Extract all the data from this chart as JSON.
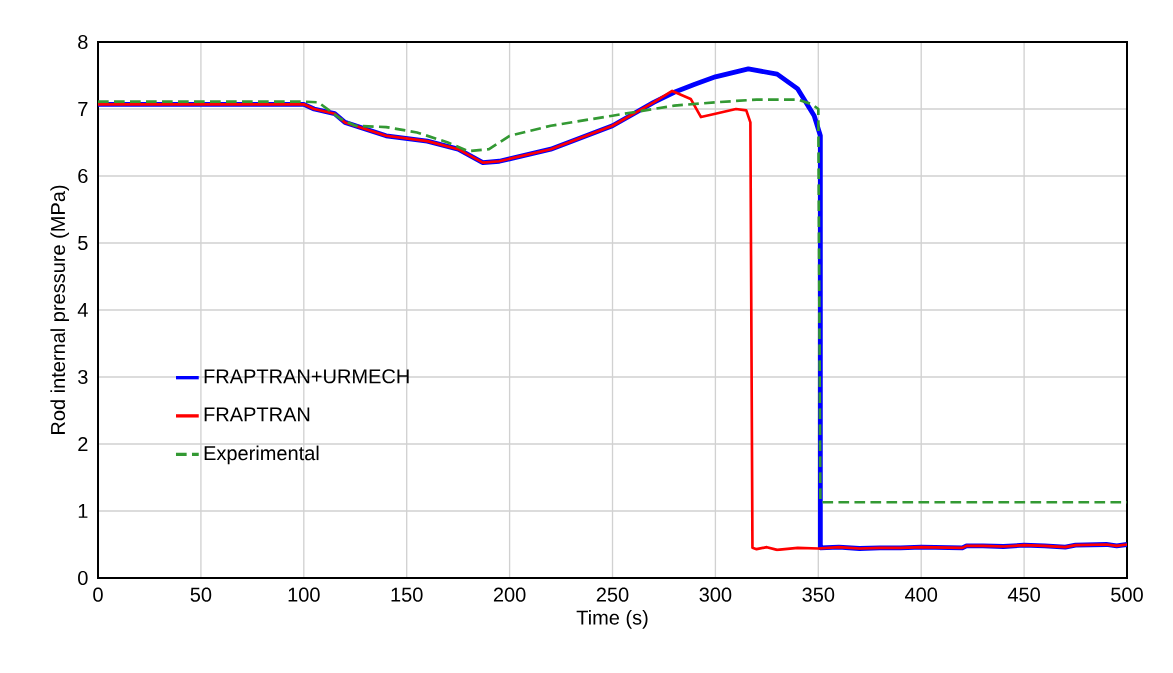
{
  "chart_data": {
    "type": "line",
    "xlabel": "Time (s)",
    "ylabel": "Rod internal pressure (MPa)",
    "xlim": [
      0,
      500
    ],
    "ylim": [
      0,
      8
    ],
    "xticks": [
      0,
      50,
      100,
      150,
      200,
      250,
      300,
      350,
      400,
      450,
      500
    ],
    "yticks": [
      0,
      1,
      2,
      3,
      4,
      5,
      6,
      7,
      8
    ],
    "grid": true,
    "legend": "left",
    "series": [
      {
        "name": "FRAPTRAN+URMECH",
        "color": "#0000ff",
        "line_style": "solid",
        "x": [
          0,
          100,
          105,
          115,
          120,
          140,
          160,
          175,
          187,
          195,
          220,
          250,
          270,
          280,
          290,
          300,
          316,
          330,
          340,
          348,
          351,
          351,
          360,
          370,
          380,
          390,
          400,
          420,
          422,
          430,
          440,
          450,
          460,
          470,
          475,
          490,
          495,
          500
        ],
        "values": [
          7.07,
          7.07,
          7.0,
          6.93,
          6.8,
          6.6,
          6.52,
          6.4,
          6.2,
          6.22,
          6.4,
          6.75,
          7.1,
          7.25,
          7.37,
          7.48,
          7.6,
          7.52,
          7.3,
          6.9,
          6.6,
          0.45,
          0.46,
          0.44,
          0.45,
          0.45,
          0.46,
          0.45,
          0.48,
          0.48,
          0.47,
          0.49,
          0.48,
          0.46,
          0.49,
          0.5,
          0.48,
          0.5
        ]
      },
      {
        "name": "FRAPTRAN",
        "color": "#ff0000",
        "line_style": "solid",
        "x": [
          0,
          100,
          105,
          115,
          120,
          140,
          160,
          175,
          187,
          195,
          220,
          250,
          270,
          279,
          288,
          293,
          300,
          310,
          315,
          317,
          318,
          320,
          325,
          330,
          340,
          350,
          360,
          370,
          380,
          390,
          400,
          420,
          422,
          430,
          440,
          450,
          460,
          470,
          475,
          490,
          495,
          500
        ],
        "values": [
          7.07,
          7.07,
          7.0,
          6.93,
          6.8,
          6.6,
          6.52,
          6.4,
          6.2,
          6.22,
          6.4,
          6.75,
          7.1,
          7.27,
          7.15,
          6.88,
          6.93,
          7.0,
          6.98,
          6.8,
          0.45,
          0.43,
          0.46,
          0.42,
          0.45,
          0.44,
          0.46,
          0.44,
          0.45,
          0.45,
          0.46,
          0.45,
          0.48,
          0.48,
          0.47,
          0.49,
          0.48,
          0.46,
          0.49,
          0.5,
          0.48,
          0.5
        ]
      },
      {
        "name": "Experimental",
        "color": "#339933",
        "line_style": "dashed",
        "x": [
          0,
          100,
          107,
          118,
          125,
          140,
          155,
          170,
          180,
          190,
          200,
          220,
          250,
          280,
          300,
          320,
          340,
          347,
          350,
          351,
          500
        ],
        "values": [
          7.11,
          7.11,
          7.1,
          6.85,
          6.75,
          6.73,
          6.65,
          6.5,
          6.37,
          6.4,
          6.6,
          6.75,
          6.9,
          7.05,
          7.1,
          7.14,
          7.14,
          7.07,
          7.0,
          1.13,
          1.13
        ]
      }
    ]
  }
}
